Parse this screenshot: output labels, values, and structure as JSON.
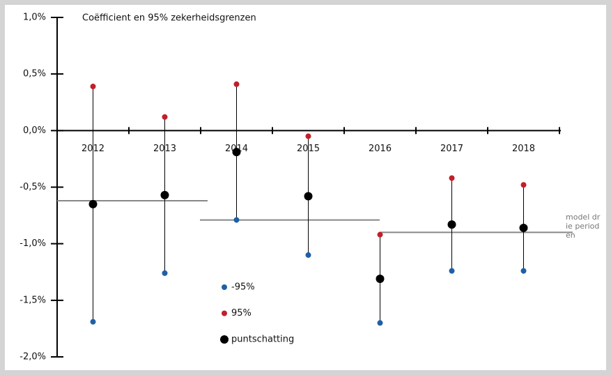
{
  "chart_data": {
    "type": "errorbar",
    "title": "Coëfficient en 95% zekerheidsgrenzen",
    "categories": [
      "2012",
      "2013",
      "2014",
      "2015",
      "2016",
      "2017",
      "2018"
    ],
    "series": [
      {
        "name": "-95%",
        "color": "#1f5fa6",
        "values": [
          -1.69,
          -1.26,
          -0.79,
          -1.1,
          -1.7,
          -1.24,
          -1.24
        ]
      },
      {
        "name": "95%",
        "color": "#c0202a",
        "values": [
          0.39,
          0.12,
          0.41,
          -0.05,
          -0.92,
          -0.42,
          -0.48
        ]
      },
      {
        "name": "puntschatting",
        "color": "#000000",
        "values": [
          -0.65,
          -0.57,
          -0.19,
          -0.58,
          -1.31,
          -0.83,
          -0.86
        ]
      }
    ],
    "model": {
      "name": "model drie perioden",
      "color": "#888888",
      "values": [
        -0.62,
        -0.79,
        -0.9
      ]
    },
    "ylim": [
      -2.0,
      1.0
    ],
    "yticks": [
      {
        "value": -2.0,
        "label": "-2,0%"
      },
      {
        "value": -1.5,
        "label": "-1,5%"
      },
      {
        "value": -1.0,
        "label": "-1,0%"
      },
      {
        "value": -0.5,
        "label": "-0,5%"
      },
      {
        "value": 0.0,
        "label": "0,0%"
      },
      {
        "value": 0.5,
        "label": "0,5%"
      },
      {
        "value": 1.0,
        "label": "1,0%"
      }
    ]
  }
}
